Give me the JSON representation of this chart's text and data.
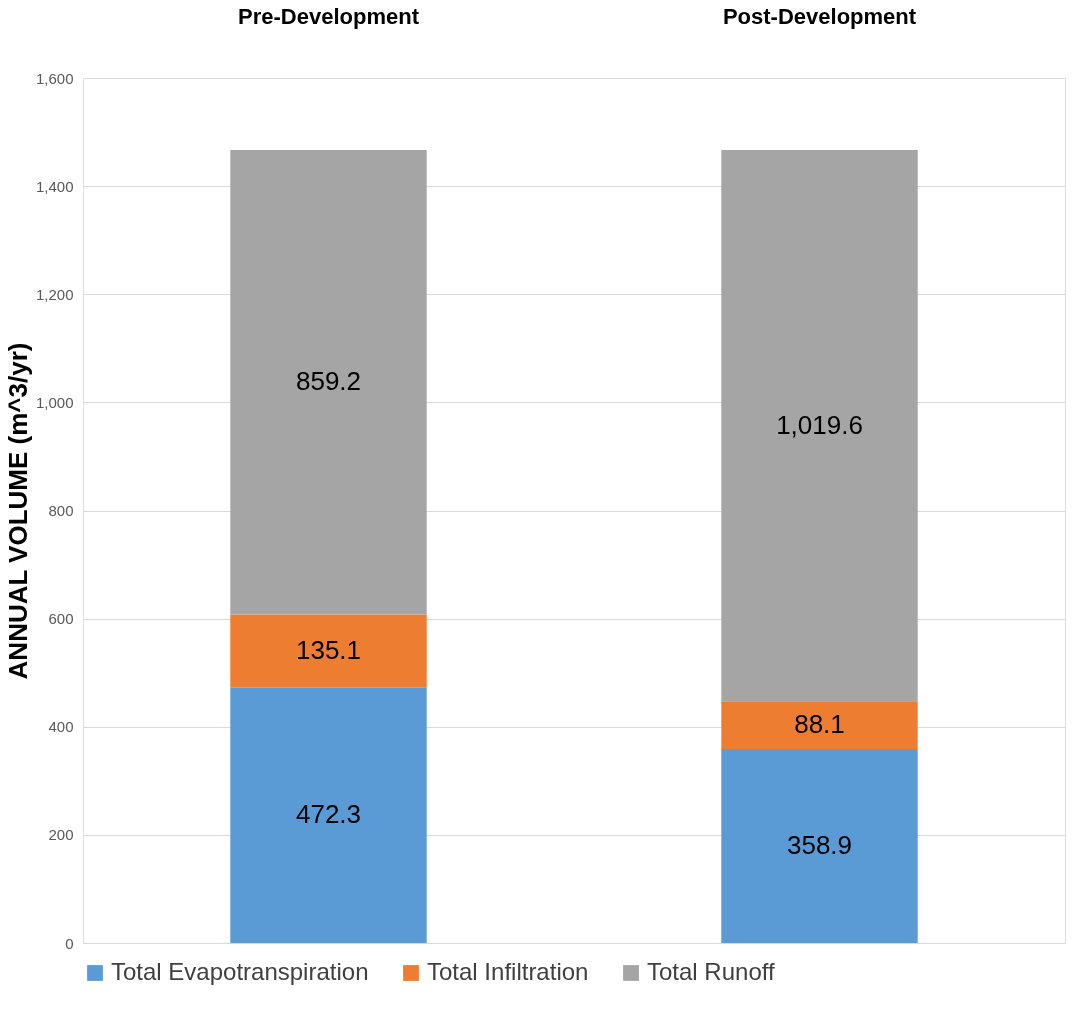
{
  "chart_data": {
    "type": "bar",
    "stacked": true,
    "ylabel": "ANNUAL VOLUME (m^3/yr)",
    "categories": [
      "Pre-Development",
      "Post-Development"
    ],
    "series": [
      {
        "name": "Total Evapotranspiration",
        "color": "#5b9bd5",
        "values": [
          472.3,
          358.9
        ],
        "value_labels": [
          "472.3",
          "358.9"
        ]
      },
      {
        "name": "Total Infiltration",
        "color": "#ed7d31",
        "values": [
          135.1,
          88.1
        ],
        "value_labels": [
          "135.1",
          "88.1"
        ]
      },
      {
        "name": "Total Runoff",
        "color": "#a5a5a5",
        "values": [
          859.2,
          1019.6
        ],
        "value_labels": [
          "859.2",
          "1,019.6"
        ]
      }
    ],
    "ylim": [
      0,
      1600
    ],
    "yticks": [
      0,
      200,
      400,
      600,
      800,
      {
        "value": 1000,
        "label": "1,000"
      },
      {
        "value": 1200,
        "label": "1,200"
      },
      {
        "value": 1400,
        "label": "1,400"
      },
      {
        "value": 1600,
        "label": "1,600"
      }
    ],
    "grid": "y",
    "legend": "bottom"
  }
}
